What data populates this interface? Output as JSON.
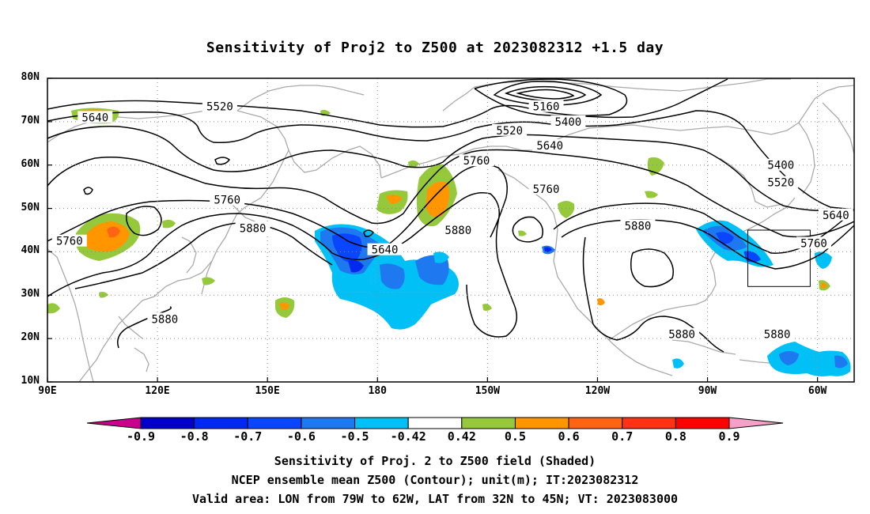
{
  "title": "Sensitivity of Proj2 to Z500 at 2023082312 +1.5 day",
  "map": {
    "lon_range": [
      90,
      310
    ],
    "lat_range": [
      10,
      80
    ],
    "lat_labels": [
      "80N",
      "70N",
      "60N",
      "50N",
      "40N",
      "30N",
      "20N",
      "10N"
    ],
    "lat_values": [
      80,
      70,
      60,
      50,
      40,
      30,
      20,
      10
    ],
    "lon_labels": [
      "90E",
      "120E",
      "150E",
      "180",
      "150W",
      "120W",
      "90W",
      "60W"
    ],
    "lon_values": [
      90,
      120,
      150,
      180,
      210,
      240,
      270,
      300
    ],
    "contour_labels": [
      {
        "text": "5520",
        "lon": 137,
        "lat": 73.5
      },
      {
        "text": "5640",
        "lon": 103,
        "lat": 71
      },
      {
        "text": "5160",
        "lon": 226,
        "lat": 73.5
      },
      {
        "text": "5400",
        "lon": 232,
        "lat": 70
      },
      {
        "text": "5520",
        "lon": 216,
        "lat": 68
      },
      {
        "text": "5640",
        "lon": 227,
        "lat": 64.5
      },
      {
        "text": "5760",
        "lon": 207,
        "lat": 61
      },
      {
        "text": "5760",
        "lon": 139,
        "lat": 52
      },
      {
        "text": "5880",
        "lon": 146,
        "lat": 45.5
      },
      {
        "text": "5760",
        "lon": 96,
        "lat": 42.5
      },
      {
        "text": "5640",
        "lon": 182,
        "lat": 40.5
      },
      {
        "text": "5880",
        "lon": 202,
        "lat": 45
      },
      {
        "text": "5760",
        "lon": 226,
        "lat": 54.5
      },
      {
        "text": "5880",
        "lon": 251,
        "lat": 46
      },
      {
        "text": "5400",
        "lon": 290,
        "lat": 60
      },
      {
        "text": "5520",
        "lon": 290,
        "lat": 56
      },
      {
        "text": "5640",
        "lon": 305,
        "lat": 48.5
      },
      {
        "text": "5760",
        "lon": 299,
        "lat": 42
      },
      {
        "text": "5880",
        "lon": 122,
        "lat": 24.5
      },
      {
        "text": "5880",
        "lon": 263,
        "lat": 21
      },
      {
        "text": "5880",
        "lon": 289,
        "lat": 21
      }
    ],
    "valid_box": {
      "lon_min": 281,
      "lon_max": 298,
      "lat_min": 32,
      "lat_max": 45
    },
    "colors": {
      "contour": "#000000",
      "coast": "#aaaaaa",
      "grid": "#888888"
    }
  },
  "colorbar": {
    "labels": [
      "-0.9",
      "-0.8",
      "-0.7",
      "-0.6",
      "-0.5",
      "-0.42",
      "0.42",
      "0.5",
      "0.6",
      "0.7",
      "0.8",
      "0.9"
    ],
    "colors": [
      "#c8008c",
      "#0000c8",
      "#0028f0",
      "#0a46ff",
      "#1e78f0",
      "#00c0f5",
      "#ffffff",
      "#96c83c",
      "#ff9600",
      "#ff6414",
      "#ff3214",
      "#ff0000",
      "#f5a0c8"
    ]
  },
  "captions": [
    "Sensitivity of Proj. 2 to Z500 field (Shaded)",
    "NCEP ensemble mean Z500 (Contour); unit(m); IT:2023082312",
    "Valid area: LON from 79W to 62W, LAT from 32N to 45N; VT: 2023083000"
  ]
}
